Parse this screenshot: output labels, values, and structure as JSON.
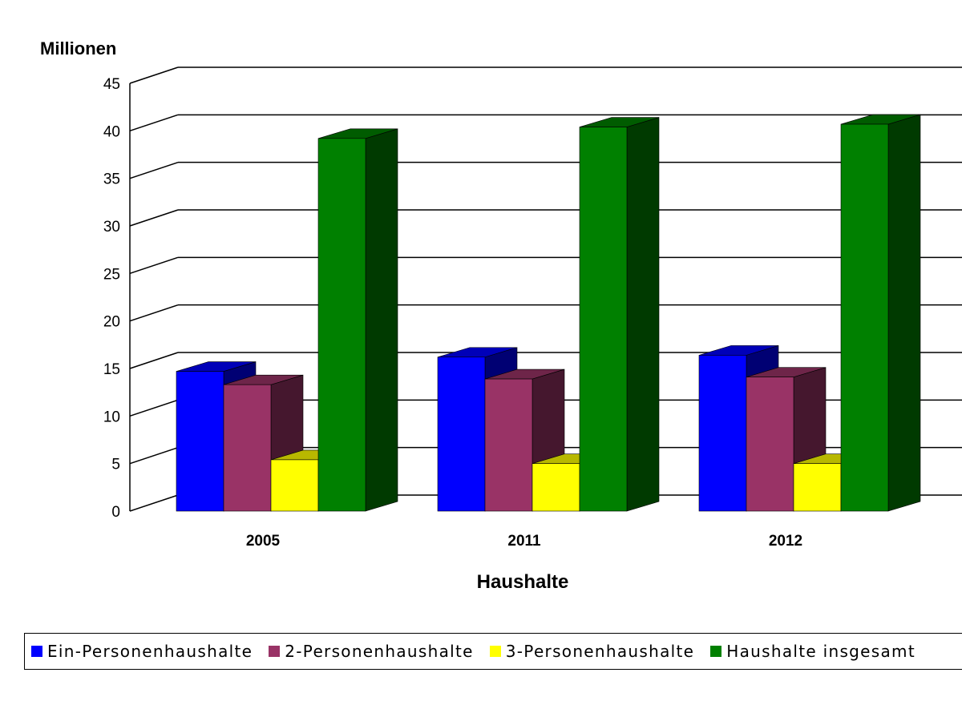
{
  "chart_data": {
    "type": "bar",
    "title": "",
    "ylabel": "Millionen",
    "xlabel": "Haushalte",
    "categories": [
      "2005",
      "2011",
      "2012"
    ],
    "ylim": [
      0,
      45
    ],
    "yticks": [
      0,
      5,
      10,
      15,
      20,
      25,
      30,
      35,
      40,
      45
    ],
    "grid": true,
    "legend_position": "bottom",
    "series": [
      {
        "name": "Ein-Personenhaushalte",
        "color": "#0000ff",
        "values": [
          14.7,
          16.2,
          16.4
        ]
      },
      {
        "name": "2-Personenhaushalte",
        "color": "#993366",
        "values": [
          13.3,
          13.9,
          14.1
        ]
      },
      {
        "name": "3-Personenhaushalte",
        "color": "#ffff00",
        "values": [
          5.4,
          5.0,
          5.0
        ]
      },
      {
        "name": "Haushalte insgesamt",
        "color": "#008000",
        "values": [
          39.2,
          40.4,
          40.7
        ]
      }
    ]
  }
}
